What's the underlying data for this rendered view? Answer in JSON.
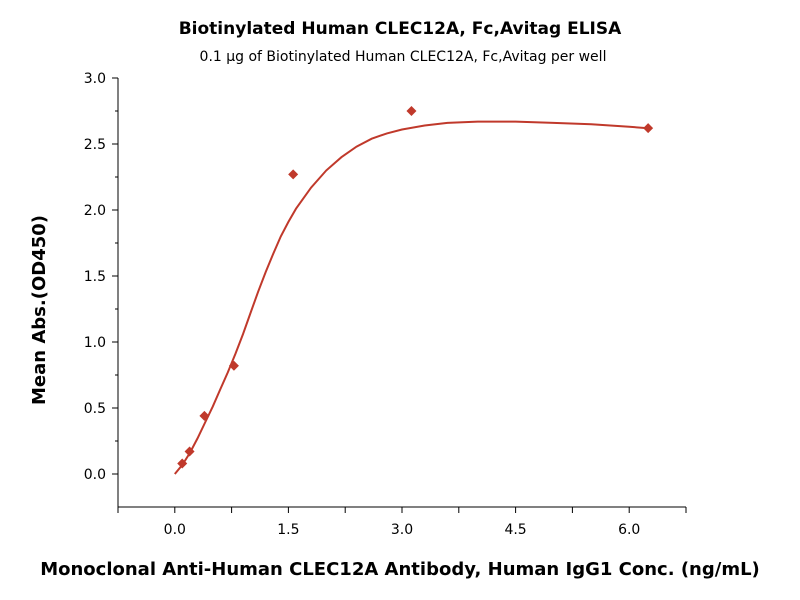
{
  "chart_data": {
    "type": "scatter",
    "title": "Biotinylated Human CLEC12A, Fc,Avitag ELISA",
    "subtitle": "0.1 μg of Biotinylated Human CLEC12A, Fc,Avitag per well",
    "xlabel": "Monoclonal Anti-Human CLEC12A Antibody, Human IgG1 Conc. (ng/mL)",
    "ylabel": "Mean Abs.(OD450)",
    "xlim": [
      -0.75,
      6.75
    ],
    "ylim": [
      -0.25,
      3.0
    ],
    "x_ticks": [
      0.0,
      1.5,
      3.0,
      4.5,
      6.0
    ],
    "x_tick_labels": [
      "0.0",
      "1.5",
      "3.0",
      "4.5",
      "6.0"
    ],
    "y_ticks": [
      0.0,
      0.5,
      1.0,
      1.5,
      2.0,
      2.5,
      3.0
    ],
    "y_tick_labels": [
      "0.0",
      "0.5",
      "1.0",
      "1.5",
      "2.0",
      "2.5",
      "3.0"
    ],
    "grid": false,
    "color": "#c0392b",
    "series": [
      {
        "marker": "diamond",
        "points": [
          {
            "x": 0.098,
            "y": 0.08
          },
          {
            "x": 0.195,
            "y": 0.17
          },
          {
            "x": 0.391,
            "y": 0.44
          },
          {
            "x": 0.781,
            "y": 0.82
          },
          {
            "x": 1.563,
            "y": 2.27
          },
          {
            "x": 3.125,
            "y": 2.75
          },
          {
            "x": 6.25,
            "y": 2.62
          }
        ]
      }
    ],
    "fit_curve": [
      {
        "x": 0.0,
        "y": 0.0
      },
      {
        "x": 0.1,
        "y": 0.07
      },
      {
        "x": 0.2,
        "y": 0.16
      },
      {
        "x": 0.3,
        "y": 0.27
      },
      {
        "x": 0.4,
        "y": 0.39
      },
      {
        "x": 0.5,
        "y": 0.51
      },
      {
        "x": 0.6,
        "y": 0.64
      },
      {
        "x": 0.7,
        "y": 0.77
      },
      {
        "x": 0.8,
        "y": 0.91
      },
      {
        "x": 0.9,
        "y": 1.06
      },
      {
        "x": 1.0,
        "y": 1.22
      },
      {
        "x": 1.1,
        "y": 1.38
      },
      {
        "x": 1.2,
        "y": 1.53
      },
      {
        "x": 1.3,
        "y": 1.67
      },
      {
        "x": 1.4,
        "y": 1.8
      },
      {
        "x": 1.5,
        "y": 1.91
      },
      {
        "x": 1.6,
        "y": 2.01
      },
      {
        "x": 1.8,
        "y": 2.17
      },
      {
        "x": 2.0,
        "y": 2.3
      },
      {
        "x": 2.2,
        "y": 2.4
      },
      {
        "x": 2.4,
        "y": 2.48
      },
      {
        "x": 2.6,
        "y": 2.54
      },
      {
        "x": 2.8,
        "y": 2.58
      },
      {
        "x": 3.0,
        "y": 2.61
      },
      {
        "x": 3.3,
        "y": 2.64
      },
      {
        "x": 3.6,
        "y": 2.66
      },
      {
        "x": 4.0,
        "y": 2.67
      },
      {
        "x": 4.5,
        "y": 2.67
      },
      {
        "x": 5.0,
        "y": 2.66
      },
      {
        "x": 5.5,
        "y": 2.65
      },
      {
        "x": 6.0,
        "y": 2.63
      },
      {
        "x": 6.25,
        "y": 2.62
      }
    ]
  }
}
